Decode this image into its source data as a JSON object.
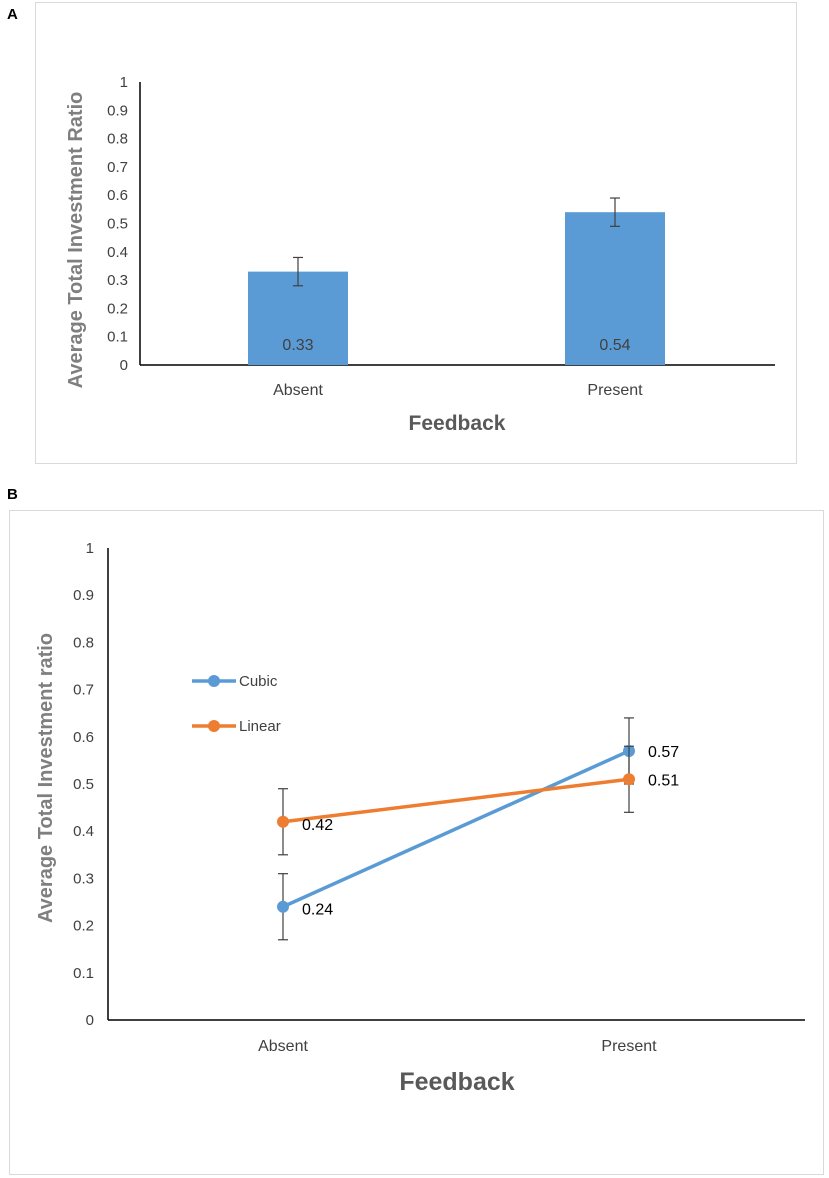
{
  "panels": {
    "a_label": "A",
    "b_label": "B"
  },
  "colors": {
    "bar": "#5b9bd5",
    "cubic": "#5b9bd5",
    "linear": "#ed7d31",
    "axis": "#000000",
    "error": "#404040"
  },
  "chart_data": [
    {
      "type": "bar",
      "title": "",
      "xlabel": "Feedback",
      "ylabel": "Average Total Investment Ratio",
      "categories": [
        "Absent",
        "Present"
      ],
      "values": [
        0.33,
        0.54
      ],
      "data_labels": [
        "0.33",
        "0.54"
      ],
      "error": [
        0.05,
        0.05
      ],
      "ylim": [
        0,
        1
      ],
      "yticks": [
        "0",
        "0.1",
        "0.2",
        "0.3",
        "0.4",
        "0.5",
        "0.6",
        "0.7",
        "0.8",
        "0.9",
        "1"
      ],
      "grid": false
    },
    {
      "type": "line",
      "title": "",
      "xlabel": "Feedback",
      "ylabel": "Average Total Investment ratio",
      "categories": [
        "Absent",
        "Present"
      ],
      "series": [
        {
          "name": "Cubic",
          "values": [
            0.24,
            0.57
          ],
          "data_labels": [
            "0.24",
            "0.57"
          ],
          "error": [
            0.07,
            0.07
          ]
        },
        {
          "name": "Linear",
          "values": [
            0.42,
            0.51
          ],
          "data_labels": [
            "0.42",
            "0.51"
          ],
          "error": [
            0.07,
            0.07
          ]
        }
      ],
      "ylim": [
        0,
        1
      ],
      "yticks": [
        "0",
        "0.1",
        "0.2",
        "0.3",
        "0.4",
        "0.5",
        "0.6",
        "0.7",
        "0.8",
        "0.9",
        "1"
      ],
      "legend": "left",
      "grid": false
    }
  ]
}
